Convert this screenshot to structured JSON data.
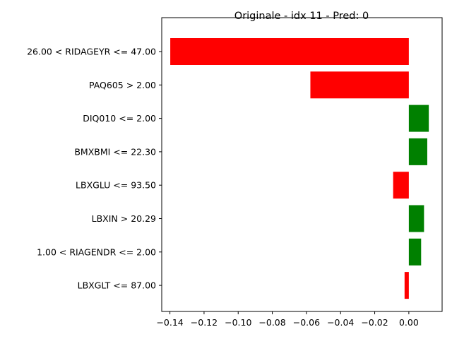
{
  "chart_data": {
    "type": "bar",
    "orientation": "horizontal",
    "title": "Originale - idx 11 - Pred: 0",
    "xlabel": "",
    "ylabel": "",
    "xlim": [
      -0.1448,
      0.0195
    ],
    "grid": false,
    "categories": [
      "26.00 < RIDAGEYR <= 47.00",
      "PAQ605 > 2.00",
      "DIQ010 <= 2.00",
      "BMXBMI <= 22.30",
      "LBXGLU <= 93.50",
      "LBXIN > 20.29",
      "1.00 < RIAGENDR <= 2.00",
      "LBXGLT <= 87.00"
    ],
    "values": [
      -0.1398,
      -0.0577,
      0.0117,
      0.0108,
      -0.0092,
      0.0089,
      0.0072,
      -0.0025
    ],
    "colors": {
      "positive": "#008000",
      "negative": "#ff0000"
    },
    "xticks": [
      -0.14,
      -0.12,
      -0.1,
      -0.08,
      -0.06,
      -0.04,
      -0.02,
      0.0
    ],
    "xtick_labels": [
      "−0.14",
      "−0.12",
      "−0.10",
      "−0.08",
      "−0.06",
      "−0.04",
      "−0.02",
      "0.00"
    ]
  }
}
